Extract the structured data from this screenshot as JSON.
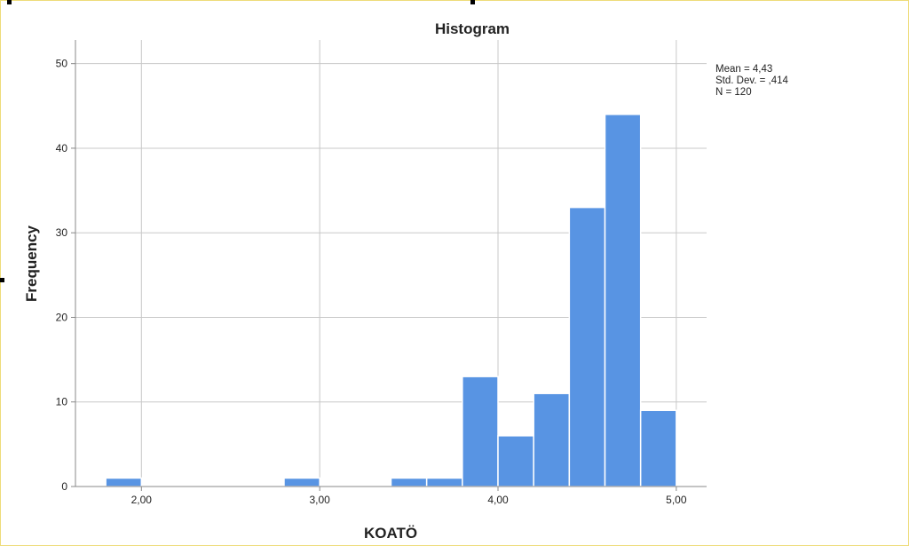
{
  "chart_data": {
    "type": "bar",
    "title": "Histogram",
    "xlabel": "KOATÖ",
    "ylabel": "Frequency",
    "bin_width": 0.2,
    "bins": [
      {
        "from": 1.8,
        "to": 2.0,
        "count": 1
      },
      {
        "from": 2.8,
        "to": 3.0,
        "count": 1
      },
      {
        "from": 3.4,
        "to": 3.6,
        "count": 1
      },
      {
        "from": 3.6,
        "to": 3.8,
        "count": 1
      },
      {
        "from": 3.8,
        "to": 4.0,
        "count": 13
      },
      {
        "from": 4.0,
        "to": 4.2,
        "count": 6
      },
      {
        "from": 4.2,
        "to": 4.4,
        "count": 11
      },
      {
        "from": 4.4,
        "to": 4.6,
        "count": 33
      },
      {
        "from": 4.6,
        "to": 4.8,
        "count": 44
      },
      {
        "from": 4.8,
        "to": 5.0,
        "count": 9
      }
    ],
    "xticks": [
      2,
      3,
      4,
      5
    ],
    "xtick_labels": [
      "2,00",
      "3,00",
      "4,00",
      "5,00"
    ],
    "yticks": [
      0,
      10,
      20,
      30,
      40,
      50
    ],
    "ytick_labels": [
      "0",
      "10",
      "20",
      "30",
      "40",
      "50"
    ],
    "xlim": [
      1.63,
      5.17
    ],
    "ylim": [
      0,
      52.8
    ],
    "grid": true,
    "bar_color": "#5894e3",
    "stats": [
      "Mean = 4,43",
      "Std. Dev. = ,414",
      "N = 120"
    ],
    "legend": "right"
  }
}
